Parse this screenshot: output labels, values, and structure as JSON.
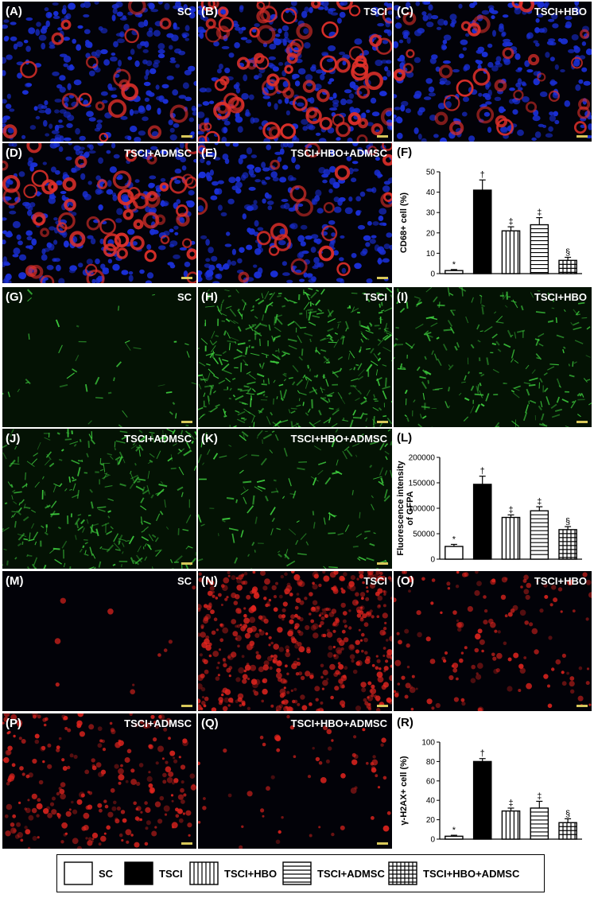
{
  "panels": [
    {
      "label": "(A)",
      "group": "SC"
    },
    {
      "label": "(B)",
      "group": "TSCI"
    },
    {
      "label": "(C)",
      "group": "TSCI+HBO"
    },
    {
      "label": "(D)",
      "group": "TSCI+ADMSC"
    },
    {
      "label": "(E)",
      "group": "TSCI+HBO+ADMSC"
    },
    {
      "label": "(G)",
      "group": "SC"
    },
    {
      "label": "(H)",
      "group": "TSCI"
    },
    {
      "label": "(I)",
      "group": "TSCI+HBO"
    },
    {
      "label": "(J)",
      "group": "TSCI+ADMSC"
    },
    {
      "label": "(K)",
      "group": "TSCI+HBO+ADMSC"
    },
    {
      "label": "(M)",
      "group": "SC"
    },
    {
      "label": "(N)",
      "group": "TSCI"
    },
    {
      "label": "(O)",
      "group": "TSCI+HBO"
    },
    {
      "label": "(P)",
      "group": "TSCI+ADMSC"
    },
    {
      "label": "(Q)",
      "group": "TSCI+HBO+ADMSC"
    }
  ],
  "chart_data": [
    {
      "type": "bar",
      "panel_label": "(F)",
      "ylabel": "CD68+ cell (%)",
      "ylim": [
        0,
        50
      ],
      "yticks": [
        "0",
        "10",
        "20",
        "30",
        "40",
        "50"
      ],
      "categories": [
        "SC",
        "TSCI",
        "TSCI+HBO",
        "TSCI+ADMSC",
        "TSCI+HBO+ADMSC"
      ],
      "values": [
        1.5,
        41,
        21,
        24,
        6.5
      ],
      "errors": [
        0.5,
        5,
        2,
        3.5,
        1.5
      ],
      "marks": [
        "*",
        "†",
        "‡",
        "‡",
        "§"
      ]
    },
    {
      "type": "bar",
      "panel_label": "(L)",
      "ylabel": "Fluorescence intensity of GFPA",
      "ylim": [
        0,
        200000
      ],
      "yticks": [
        "0",
        "50000",
        "100000",
        "150000",
        "200000"
      ],
      "categories": [
        "SC",
        "TSCI",
        "TSCI+HBO",
        "TSCI+ADMSC",
        "TSCI+HBO+ADMSC"
      ],
      "values": [
        25000,
        147000,
        82000,
        95000,
        58000
      ],
      "errors": [
        4000,
        16000,
        5000,
        8000,
        6000
      ],
      "marks": [
        "*",
        "†",
        "‡",
        "‡",
        "§"
      ]
    },
    {
      "type": "bar",
      "panel_label": "(R)",
      "ylabel": "γ-H2AX+ cell (%)",
      "ylim": [
        0,
        100
      ],
      "yticks": [
        "0",
        "20",
        "40",
        "60",
        "80",
        "100"
      ],
      "categories": [
        "SC",
        "TSCI",
        "TSCI+HBO",
        "TSCI+ADMSC",
        "TSCI+HBO+ADMSC"
      ],
      "values": [
        3,
        80,
        29,
        32,
        17
      ],
      "errors": [
        1,
        3,
        3,
        7,
        4
      ],
      "marks": [
        "*",
        "†",
        "‡",
        "‡",
        "§"
      ]
    }
  ],
  "legend": [
    {
      "label": "SC",
      "pattern": "empty"
    },
    {
      "label": "TSCI",
      "pattern": "solid"
    },
    {
      "label": "TSCI+HBO",
      "pattern": "vertical"
    },
    {
      "label": "TSCI+ADMSC",
      "pattern": "horizontal"
    },
    {
      "label": "TSCI+HBO+ADMSC",
      "pattern": "grid"
    }
  ],
  "colors": {
    "nuclei": "#1a2fd6",
    "cd68": "#e0302a",
    "gfap": "#3fd23f",
    "h2ax": "#e0241e"
  }
}
